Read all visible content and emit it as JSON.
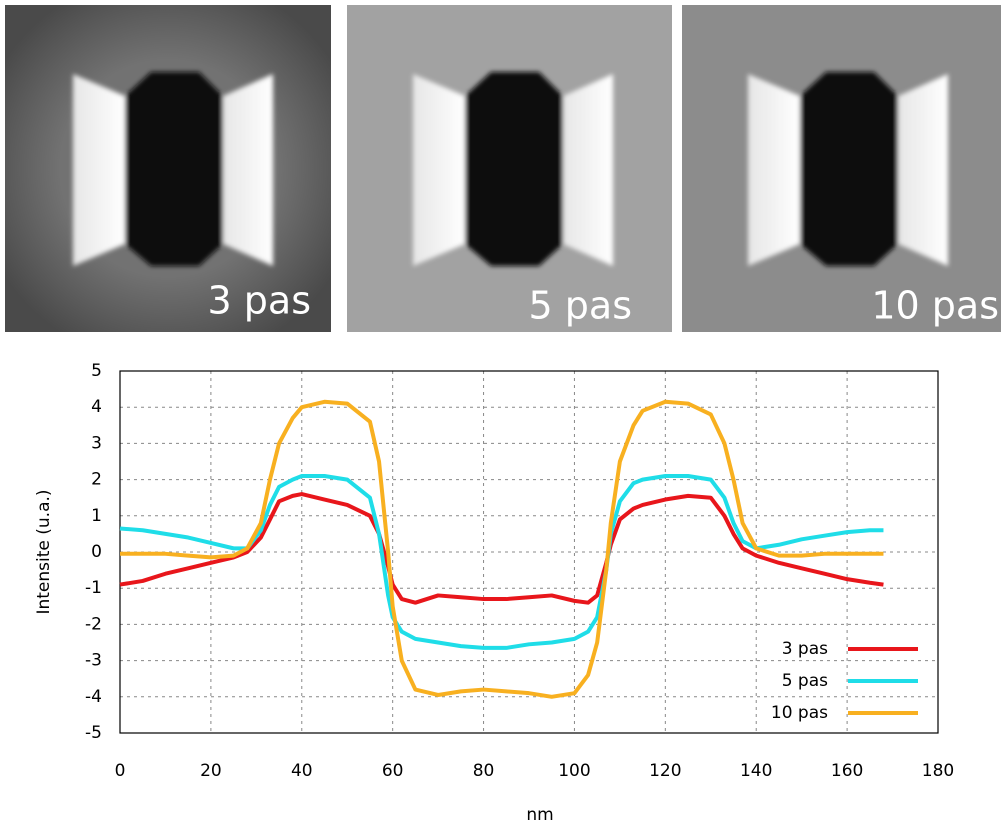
{
  "panels": [
    {
      "label": "3 pas"
    },
    {
      "label": "5 pas"
    },
    {
      "label": "10 pas"
    }
  ],
  "chart_data": {
    "type": "line",
    "x_label": "nm",
    "y_label": "Intensite (u.a.)",
    "x": [
      0,
      5,
      10,
      15,
      20,
      25,
      28,
      31,
      33,
      35,
      38,
      40,
      45,
      50,
      55,
      57,
      59,
      60,
      62,
      65,
      70,
      75,
      80,
      85,
      90,
      95,
      100,
      103,
      105,
      107,
      108,
      110,
      113,
      115,
      120,
      125,
      130,
      133,
      135,
      137,
      140,
      145,
      150,
      155,
      160,
      165,
      168
    ],
    "series": [
      {
        "name": "3 pas",
        "color": "#e8161b",
        "values": [
          -0.9,
          -0.8,
          -0.6,
          -0.45,
          -0.3,
          -0.15,
          0,
          0.4,
          0.9,
          1.4,
          1.55,
          1.6,
          1.45,
          1.3,
          1.0,
          0.5,
          -0.4,
          -0.9,
          -1.3,
          -1.4,
          -1.2,
          -1.25,
          -1.3,
          -1.3,
          -1.25,
          -1.2,
          -1.35,
          -1.4,
          -1.2,
          -0.3,
          0.2,
          0.9,
          1.2,
          1.3,
          1.45,
          1.55,
          1.5,
          1.0,
          0.5,
          0.1,
          -0.1,
          -0.3,
          -0.45,
          -0.6,
          -0.75,
          -0.85,
          -0.9
        ]
      },
      {
        "name": "5 pas",
        "color": "#1fdde8",
        "values": [
          0.65,
          0.6,
          0.5,
          0.4,
          0.25,
          0.1,
          0.1,
          0.6,
          1.3,
          1.8,
          2.0,
          2.1,
          2.1,
          2.0,
          1.5,
          0.5,
          -1.2,
          -1.8,
          -2.2,
          -2.4,
          -2.5,
          -2.6,
          -2.65,
          -2.65,
          -2.55,
          -2.5,
          -2.4,
          -2.2,
          -1.8,
          -0.5,
          0.5,
          1.4,
          1.9,
          2.0,
          2.1,
          2.1,
          2.0,
          1.5,
          0.8,
          0.3,
          0.1,
          0.2,
          0.35,
          0.45,
          0.55,
          0.6,
          0.6
        ]
      },
      {
        "name": "10 pas",
        "color": "#f8b020",
        "values": [
          -0.05,
          -0.05,
          -0.05,
          -0.1,
          -0.15,
          -0.1,
          0.1,
          0.8,
          2.0,
          3.0,
          3.7,
          4.0,
          4.15,
          4.1,
          3.6,
          2.5,
          0,
          -1.5,
          -3.0,
          -3.8,
          -3.95,
          -3.85,
          -3.8,
          -3.85,
          -3.9,
          -4.0,
          -3.9,
          -3.4,
          -2.5,
          -0.5,
          0.8,
          2.5,
          3.5,
          3.9,
          4.15,
          4.1,
          3.8,
          3.0,
          2.0,
          0.8,
          0.1,
          -0.1,
          -0.1,
          -0.05,
          -0.05,
          -0.05,
          -0.05
        ]
      }
    ],
    "xlim": [
      0,
      180
    ],
    "xticks": [
      0,
      20,
      40,
      60,
      80,
      100,
      120,
      140,
      160,
      180
    ],
    "ylim": [
      -5,
      5
    ],
    "yticks": [
      -5,
      -4,
      -3,
      -2,
      -1,
      0,
      1,
      2,
      3,
      4,
      5
    ],
    "grid": true,
    "legend": "lower right"
  }
}
